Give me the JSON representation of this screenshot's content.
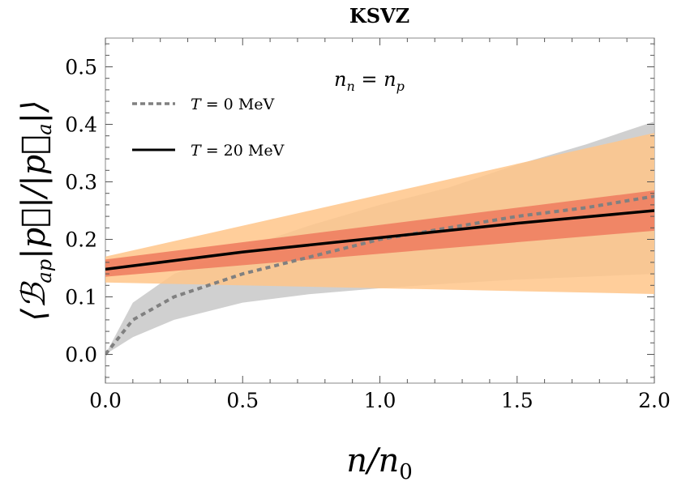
{
  "chart_data": {
    "type": "line",
    "title": "KSVZ",
    "xlabel": "n/n0",
    "ylabel": "⟨B_ap |p⃗|/|p⃗_a|⟩",
    "xlim": [
      0.0,
      2.0
    ],
    "ylim": [
      -0.05,
      0.55
    ],
    "xticks": [
      0.0,
      0.5,
      1.0,
      1.5,
      2.0
    ],
    "xtick_labels": [
      "0.0",
      "0.5",
      "1.0",
      "1.5",
      "2.0"
    ],
    "yticks": [
      0.0,
      0.1,
      0.2,
      0.3,
      0.4,
      0.5
    ],
    "ytick_labels": [
      "0.0",
      "0.1",
      "0.2",
      "0.3",
      "0.4",
      "0.5"
    ],
    "annotation": "n_n = n_p",
    "legend_position": "top-left",
    "series": [
      {
        "name": "T = 0 MeV",
        "style": "dashed",
        "color": "#808080",
        "x": [
          0.0,
          0.1,
          0.25,
          0.5,
          0.75,
          1.0,
          1.25,
          1.5,
          1.75,
          2.0
        ],
        "y": [
          0.0,
          0.06,
          0.1,
          0.14,
          0.17,
          0.2,
          0.22,
          0.24,
          0.255,
          0.275
        ]
      },
      {
        "name": "T = 20 MeV",
        "style": "solid",
        "color": "#000000",
        "x": [
          0.0,
          0.5,
          1.0,
          1.5,
          2.0
        ],
        "y": [
          0.148,
          0.178,
          0.203,
          0.228,
          0.25
        ]
      }
    ],
    "bands": [
      {
        "color": "#c8c8c8",
        "x": [
          0.0,
          0.1,
          0.25,
          0.5,
          0.75,
          1.0,
          1.25,
          1.5,
          1.75,
          2.0
        ],
        "lower": [
          0.0,
          0.03,
          0.06,
          0.09,
          0.105,
          0.115,
          0.123,
          0.13,
          0.135,
          0.14
        ],
        "upper": [
          0.0,
          0.09,
          0.14,
          0.185,
          0.225,
          0.26,
          0.29,
          0.33,
          0.365,
          0.405
        ]
      },
      {
        "color": "#ffc68a",
        "x": [
          0.0,
          2.0
        ],
        "lower": [
          0.125,
          0.105
        ],
        "upper": [
          0.17,
          0.385
        ]
      },
      {
        "color": "#ee7a5e",
        "x": [
          0.0,
          2.0
        ],
        "lower": [
          0.135,
          0.215
        ],
        "upper": [
          0.165,
          0.285
        ]
      }
    ]
  }
}
